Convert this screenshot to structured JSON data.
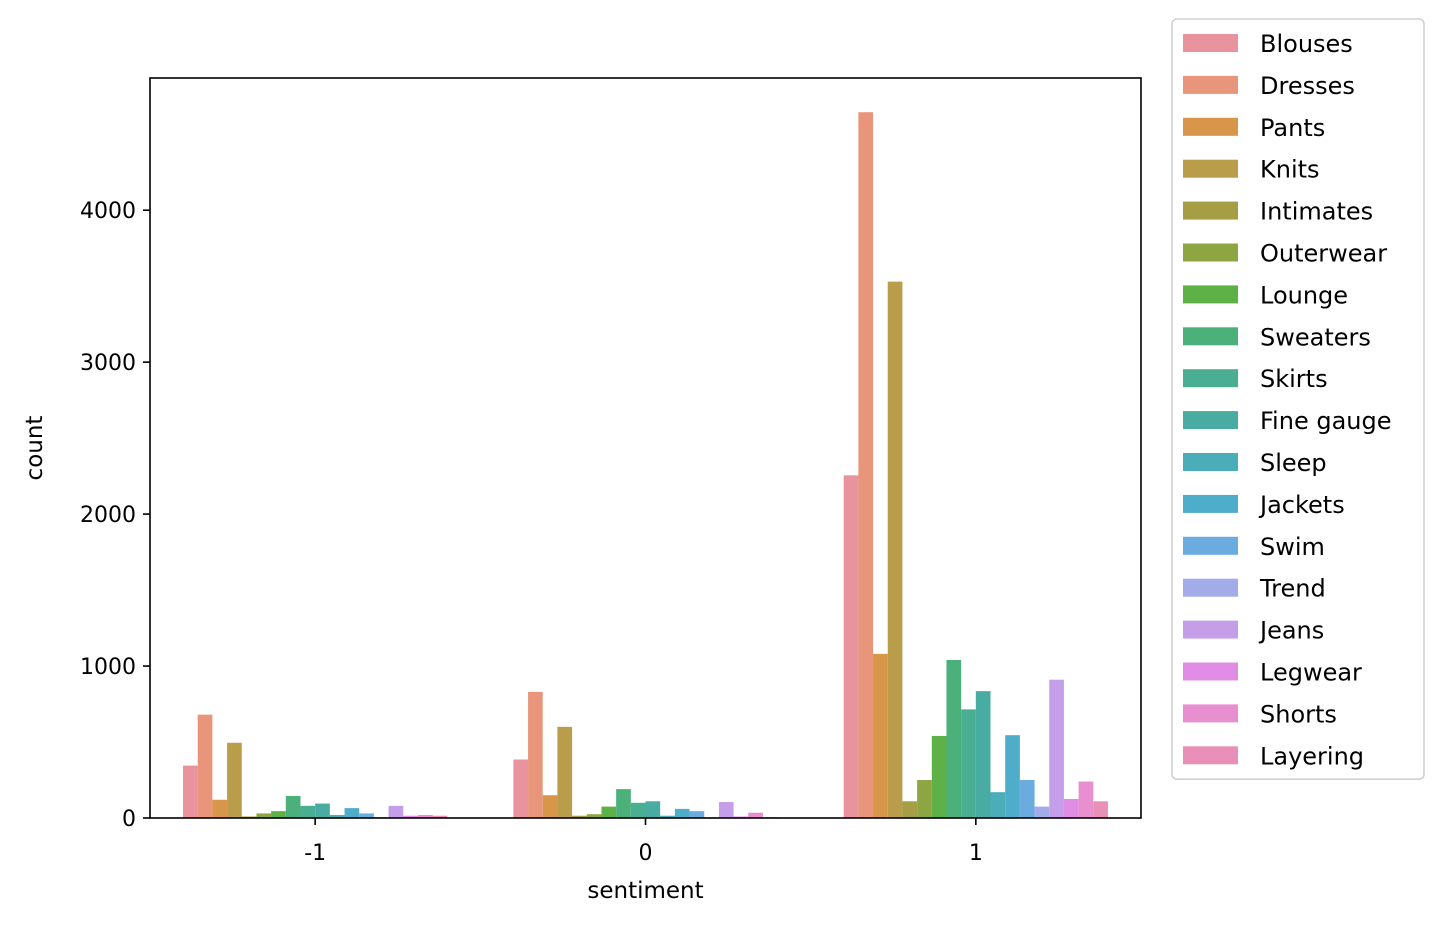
{
  "chart_data": {
    "type": "bar",
    "xlabel": "sentiment",
    "ylabel": "count",
    "categories": [
      "-1",
      "0",
      "1"
    ],
    "ylim": [
      0,
      4870
    ],
    "yticks": [
      0,
      1000,
      2000,
      3000,
      4000
    ],
    "grid": false,
    "legend_position": "outside-right",
    "series": [
      {
        "name": "Blouses",
        "color": "#e8939d",
        "values": [
          345,
          385,
          2255
        ]
      },
      {
        "name": "Dresses",
        "color": "#e8957c",
        "values": [
          680,
          830,
          4645
        ]
      },
      {
        "name": "Pants",
        "color": "#d8964a",
        "values": [
          120,
          150,
          1080
        ]
      },
      {
        "name": "Knits",
        "color": "#ba9d4a",
        "values": [
          495,
          600,
          3530
        ]
      },
      {
        "name": "Intimates",
        "color": "#a59e45",
        "values": [
          10,
          15,
          110
        ]
      },
      {
        "name": "Outerwear",
        "color": "#8ea642",
        "values": [
          30,
          25,
          250
        ]
      },
      {
        "name": "Lounge",
        "color": "#5eb146",
        "values": [
          45,
          75,
          540
        ]
      },
      {
        "name": "Sweaters",
        "color": "#4cb07a",
        "values": [
          145,
          190,
          1040
        ]
      },
      {
        "name": "Skirts",
        "color": "#4aae92",
        "values": [
          80,
          100,
          715
        ]
      },
      {
        "name": "Fine gauge",
        "color": "#49aca3",
        "values": [
          95,
          110,
          835
        ]
      },
      {
        "name": "Sleep",
        "color": "#4badb8",
        "values": [
          20,
          15,
          170
        ]
      },
      {
        "name": "Jackets",
        "color": "#4eadcb",
        "values": [
          65,
          60,
          545
        ]
      },
      {
        "name": "Swim",
        "color": "#6aabe0",
        "values": [
          30,
          45,
          250
        ]
      },
      {
        "name": "Trend",
        "color": "#a3ace8",
        "values": [
          5,
          5,
          75
        ]
      },
      {
        "name": "Jeans",
        "color": "#c49ee8",
        "values": [
          80,
          105,
          910
        ]
      },
      {
        "name": "Legwear",
        "color": "#e08de6",
        "values": [
          15,
          10,
          125
        ]
      },
      {
        "name": "Shorts",
        "color": "#e78fcf",
        "values": [
          20,
          35,
          240
        ]
      },
      {
        "name": "Layering",
        "color": "#e890b8",
        "values": [
          15,
          5,
          110
        ]
      }
    ]
  }
}
